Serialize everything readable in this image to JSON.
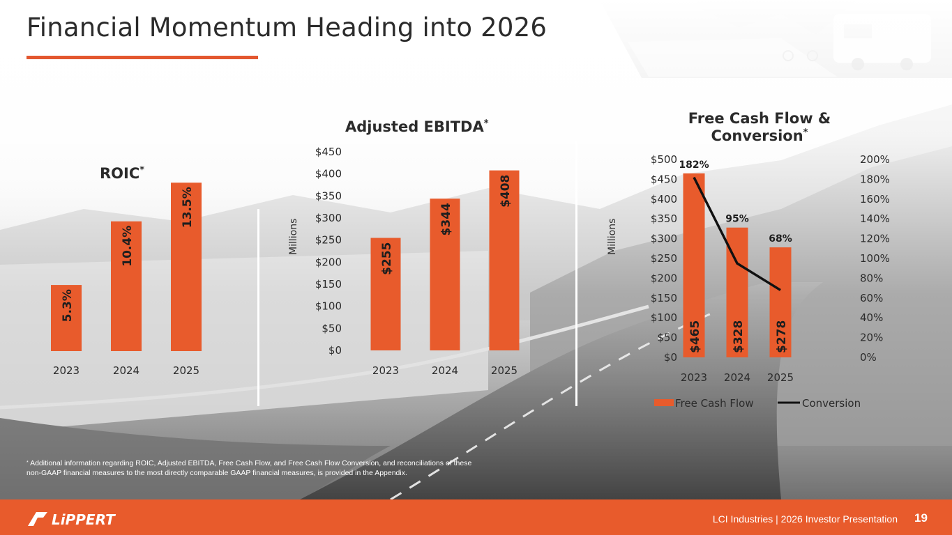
{
  "slide": {
    "title": "Financial Momentum Heading into 2026",
    "footnote_mark": "*",
    "footnote": "Additional information regarding ROIC, Adjusted EBITDA, Free Cash Flow, and Free Cash Flow Conversion, and reconciliations of these non-GAAP financial measures to the most directly comparable GAAP financial measures, is provided in the Appendix.",
    "footer_text": "LCI Industries | 2026 Investor Presentation",
    "page_number": "19",
    "logo_text": "LiPPERT",
    "accent_color": "#e85b2c"
  },
  "chart_data": [
    {
      "type": "bar",
      "title": "ROIC",
      "title_mark": "*",
      "categories": [
        "2023",
        "2024",
        "2025"
      ],
      "values": [
        5.3,
        10.4,
        13.5
      ],
      "value_labels": [
        "5.3%",
        "10.4%",
        "13.5%"
      ],
      "ylim": [
        0,
        15.3
      ],
      "color": "#e85b2c"
    },
    {
      "type": "bar",
      "title": "Adjusted EBITDA",
      "title_mark": "*",
      "categories": [
        "2023",
        "2024",
        "2025"
      ],
      "values": [
        255,
        344,
        408
      ],
      "value_labels": [
        "$255",
        "$344",
        "$408"
      ],
      "ylabel": "Millions",
      "ylim": [
        0,
        450
      ],
      "yticks": [
        "$0",
        "$50",
        "$100",
        "$150",
        "$200",
        "$250",
        "$300",
        "$350",
        "$400",
        "$450"
      ],
      "color": "#e85b2c"
    },
    {
      "type": "bar",
      "title": "Free Cash Flow & Conversion",
      "title_lines": [
        "Free Cash Flow &",
        "Conversion"
      ],
      "title_mark": "*",
      "categories": [
        "2023",
        "2024",
        "2025"
      ],
      "series": [
        {
          "name": "Free Cash Flow",
          "type": "bar",
          "values": [
            465,
            328,
            278
          ],
          "value_labels": [
            "$465",
            "$328",
            "$278"
          ],
          "color": "#e85b2c",
          "axis": "left"
        },
        {
          "name": "Conversion",
          "type": "line",
          "values": [
            182,
            95,
            68
          ],
          "value_labels": [
            "182%",
            "95%",
            "68%"
          ],
          "color": "#111111",
          "axis": "right"
        }
      ],
      "ylabel": "Millions",
      "ylim": [
        0,
        500
      ],
      "yticks": [
        "$0",
        "$50",
        "$100",
        "$150",
        "$200",
        "$250",
        "$300",
        "$350",
        "$400",
        "$450",
        "$500"
      ],
      "y2lim": [
        0,
        200
      ],
      "y2ticks": [
        "0%",
        "20%",
        "40%",
        "60%",
        "80%",
        "100%",
        "120%",
        "140%",
        "160%",
        "180%",
        "200%"
      ],
      "legend": "bottom"
    }
  ]
}
